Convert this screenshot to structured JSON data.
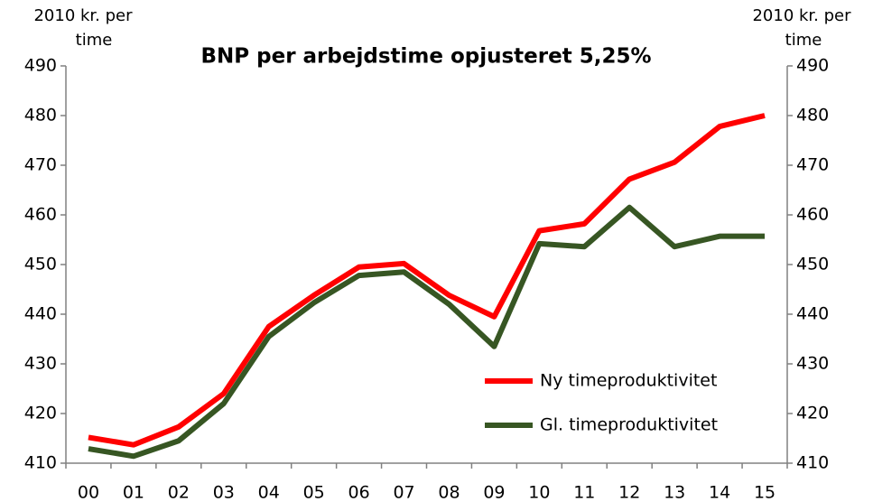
{
  "chart_data": {
    "type": "line",
    "title": "BNP per arbejdstime opjusteret 5,25%",
    "ylabel": [
      "2010 kr. per",
      "time"
    ],
    "y2label": [
      "2010 kr. per",
      "time"
    ],
    "categories": [
      "00",
      "01",
      "02",
      "03",
      "04",
      "05",
      "06",
      "07",
      "08",
      "09",
      "10",
      "11",
      "12",
      "13",
      "14",
      "15"
    ],
    "series": [
      {
        "name": "Ny timeproduktivitet",
        "color": "#ff0000",
        "values": [
          415.2,
          413.7,
          417.3,
          424,
          437.5,
          443.8,
          449.5,
          450.2,
          443.8,
          439.5,
          456.8,
          458.2,
          467.2,
          470.6,
          477.8,
          480
        ]
      },
      {
        "name": "Gl. timeproduktivitet",
        "color": "#375623",
        "values": [
          412.9,
          411.4,
          414.5,
          422,
          435.5,
          442.3,
          447.8,
          448.5,
          442,
          433.5,
          454.2,
          453.6,
          461.5,
          453.6,
          455.7,
          455.7
        ]
      }
    ],
    "ylim": [
      410,
      490
    ],
    "yticks": [
      410,
      420,
      430,
      440,
      450,
      460,
      470,
      480,
      490
    ],
    "y2lim": [
      410,
      490
    ],
    "y2ticks": [
      410,
      420,
      430,
      440,
      450,
      460,
      470,
      480,
      490
    ],
    "grid": false,
    "legend": "lower right"
  }
}
